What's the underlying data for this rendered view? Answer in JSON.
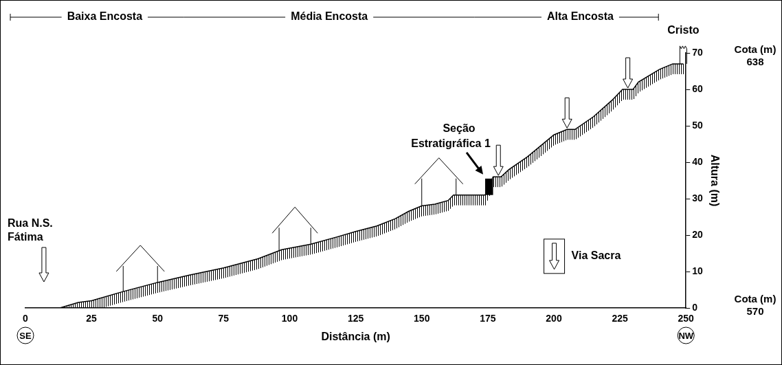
{
  "chart_data": {
    "type": "line",
    "x": [
      0,
      13,
      20,
      25,
      37,
      50,
      62,
      75,
      88,
      97,
      108,
      118,
      125,
      133,
      140,
      145,
      150,
      155,
      160,
      162,
      170,
      174,
      177,
      180,
      183,
      190,
      200,
      205,
      208,
      215,
      222,
      226,
      230,
      232,
      240,
      245,
      249
    ],
    "values": [
      0,
      0,
      1.5,
      2,
      4.5,
      7,
      9,
      11,
      13.5,
      16,
      17.5,
      19.5,
      21,
      22.5,
      24.5,
      26.5,
      28,
      28.5,
      29.5,
      31,
      31,
      31,
      36,
      36,
      38,
      41.5,
      47.5,
      49,
      49,
      52.5,
      57,
      60,
      60,
      62,
      65.5,
      67,
      67
    ],
    "color": "#000000",
    "xlim": [
      0,
      250
    ],
    "xticks": [
      0,
      25,
      50,
      75,
      100,
      125,
      150,
      175,
      200,
      225,
      250
    ],
    "ylim": [
      0,
      70
    ],
    "yticks": [
      0,
      10,
      20,
      30,
      40,
      50,
      60,
      70
    ],
    "x_label": "Distância (m)",
    "y_label": "Altura (m)",
    "grid": false,
    "annotations": {
      "zones": [
        {
          "label": "Baixa Encosta",
          "x": [
            0,
            60
          ]
        },
        {
          "label": "Média Encosta",
          "x": [
            60,
            170
          ]
        },
        {
          "label": "Alta Encosta",
          "x": [
            170,
            250
          ]
        }
      ],
      "cota": [
        {
          "label": "Cota (m)",
          "value": 638,
          "y": 70
        },
        {
          "label": "Cota (m)",
          "value": 570,
          "y": 0
        }
      ],
      "directions": [
        {
          "label": "SE",
          "x": 0
        },
        {
          "label": "NW",
          "x": 250
        }
      ],
      "street": {
        "lines": [
          "Rua N.S.",
          "Fátima"
        ],
        "x": 7
      },
      "section": {
        "lines": [
          "Seção",
          "Estratigráfica 1"
        ],
        "x": [
          174,
          177
        ],
        "y": [
          31,
          35.5
        ]
      },
      "cristo": {
        "label": "Cristo",
        "x": 249
      },
      "via_sacra": {
        "label": "Via Sacra",
        "x": [
          179,
          205,
          228
        ]
      },
      "houses": [
        [
          37,
          50
        ],
        [
          96,
          108
        ],
        [
          150,
          163
        ]
      ]
    }
  }
}
